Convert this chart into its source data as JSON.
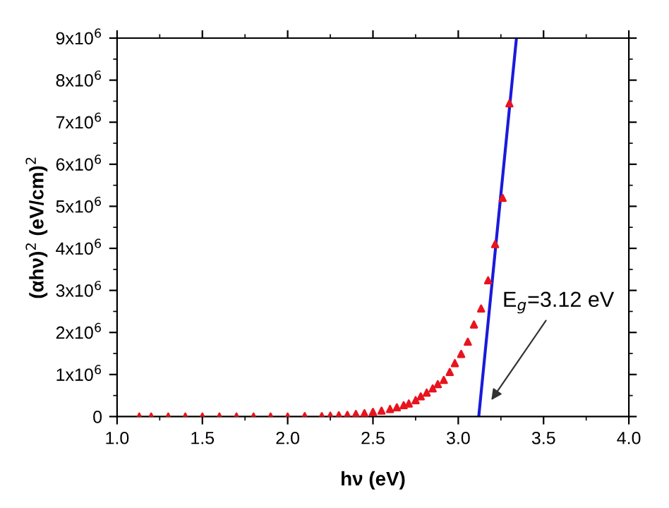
{
  "chart_data": {
    "type": "scatter",
    "xlabel": "hν (eV)",
    "ylabel": "(αhν)$^{2}$ (eV/cm)$^{2}$",
    "xlim": [
      1.0,
      4.0
    ],
    "xticks": [
      {
        "value": 1.0,
        "label": "1.0"
      },
      {
        "value": 1.5,
        "label": "1.5"
      },
      {
        "value": 2.0,
        "label": "2.0"
      },
      {
        "value": 2.5,
        "label": "2.5"
      },
      {
        "value": 3.0,
        "label": "3.0"
      },
      {
        "value": 3.5,
        "label": "3.5"
      },
      {
        "value": 4.0,
        "label": "4.0"
      }
    ],
    "ylim": [
      0,
      9000000
    ],
    "yticks": [
      0,
      {
        "value": 1000000,
        "label": "1x10$^{6}$"
      },
      {
        "value": 2000000,
        "label": "2x10$^{6}$"
      },
      {
        "value": 3000000,
        "label": "3x10$^{6}$"
      },
      {
        "value": 4000000,
        "label": "4x10$^{6}$"
      },
      {
        "value": 5000000,
        "label": "5x10$^{6}$"
      },
      {
        "value": 6000000,
        "label": "6x10$^{6}$"
      },
      {
        "value": 7000000,
        "label": "7x10$^{6}$"
      },
      {
        "value": 8000000,
        "label": "8x10$^{6}$"
      },
      {
        "value": 9000000,
        "label": "9x10$^{6}$"
      }
    ],
    "grid": false,
    "legend": false,
    "series": [
      {
        "marker": "triangle",
        "color": "#e8141e",
        "x": [
          1.13,
          1.2,
          1.3,
          1.4,
          1.5,
          1.6,
          1.7,
          1.8,
          1.9,
          2.0,
          2.1,
          2.2,
          2.25,
          2.3,
          2.35,
          2.4,
          2.45,
          2.5,
          2.55,
          2.6,
          2.64,
          2.68,
          2.71,
          2.75,
          2.78,
          2.815,
          2.85,
          2.88,
          2.915,
          2.95,
          2.98,
          3.017,
          3.056,
          3.092,
          3.134,
          3.175,
          3.216,
          3.26,
          3.3
        ],
        "values": [
          0,
          0,
          0,
          0,
          0,
          0,
          0,
          0,
          0,
          0,
          10000,
          10000,
          20000,
          30000,
          40000,
          60000,
          80000,
          110000,
          140000,
          180000,
          220000,
          270000,
          310000,
          390000,
          480000,
          570000,
          670000,
          770000,
          870000,
          1060000,
          1270000,
          1490000,
          1780000,
          2190000,
          2570000,
          3240000,
          4100000,
          5200000,
          7450000
        ]
      },
      {
        "type": "line",
        "marker": "none",
        "line_style": "solid",
        "color": "#1a1adc",
        "x": [
          3.12,
          3.341
        ],
        "values": [
          0,
          9000000
        ]
      }
    ],
    "annotations": [
      "E$_{g}$=3.12 eV"
    ]
  }
}
